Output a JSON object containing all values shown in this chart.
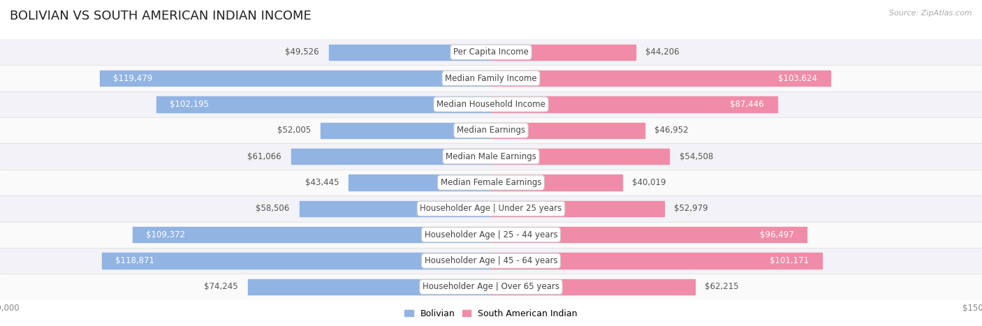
{
  "title": "BOLIVIAN VS SOUTH AMERICAN INDIAN INCOME",
  "source": "Source: ZipAtlas.com",
  "categories": [
    "Per Capita Income",
    "Median Family Income",
    "Median Household Income",
    "Median Earnings",
    "Median Male Earnings",
    "Median Female Earnings",
    "Householder Age | Under 25 years",
    "Householder Age | 25 - 44 years",
    "Householder Age | 45 - 64 years",
    "Householder Age | Over 65 years"
  ],
  "bolivian_values": [
    49526,
    119479,
    102195,
    52005,
    61066,
    43445,
    58506,
    109372,
    118871,
    74245
  ],
  "sa_indian_values": [
    44206,
    103624,
    87446,
    46952,
    54508,
    40019,
    52979,
    96497,
    101171,
    62215
  ],
  "bolivian_inside": [
    false,
    true,
    true,
    false,
    false,
    false,
    false,
    true,
    true,
    false
  ],
  "sa_indian_inside": [
    false,
    true,
    true,
    false,
    false,
    false,
    false,
    true,
    true,
    false
  ],
  "max_val": 150000,
  "blue_color": "#92b4e3",
  "pink_color": "#f08ca8",
  "row_bg_even": "#f2f2f7",
  "row_bg_odd": "#fafafa",
  "title_color": "#222222",
  "value_color_outside": "#555555",
  "value_color_inside": "#ffffff",
  "axis_label_color": "#888888",
  "source_color": "#aaaaaa",
  "legend_blue": "#92b4e3",
  "legend_pink": "#f08ca8",
  "title_fontsize": 13,
  "value_fontsize": 8.5,
  "category_fontsize": 8.5,
  "source_fontsize": 8
}
